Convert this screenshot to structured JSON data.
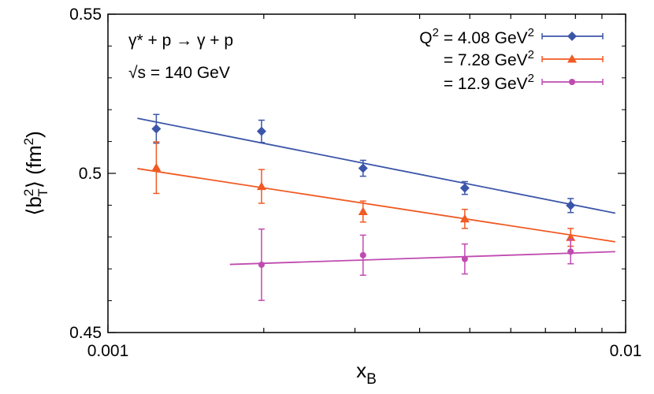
{
  "chart_data": {
    "type": "scatter",
    "title": "",
    "xlabel": "x",
    "xlabel_sub": "B",
    "ylabel_parts": {
      "open": "⟨b",
      "sup": "2",
      "sub": "T",
      "close": "⟩ (fm",
      "unit_sup": "2",
      "end": ")"
    },
    "xscale": "log",
    "xlim": [
      0.001,
      0.01
    ],
    "ylim": [
      0.45,
      0.55
    ],
    "xticks": [
      0.001,
      0.01
    ],
    "xtick_labels": [
      "0.001",
      "0.01"
    ],
    "yticks": [
      0.45,
      0.5,
      0.55
    ],
    "ytick_labels": [
      "0.45",
      "0.5",
      "0.55"
    ],
    "grid": false,
    "legend_position": "top-right",
    "annotations": [
      {
        "text": "γ* + p → γ + p"
      },
      {
        "text": "√s = 140 GeV"
      }
    ],
    "series": [
      {
        "name": "Q² = 4.08 GeV²",
        "legend_prefix": "Q",
        "legend_value": " = 4.08 GeV",
        "color": "#3b55a8",
        "marker": "diamond",
        "points": [
          {
            "x": 0.00124,
            "y": 0.514,
            "err": 0.0045
          },
          {
            "x": 0.00198,
            "y": 0.5132,
            "err": 0.0035
          },
          {
            "x": 0.00311,
            "y": 0.5016,
            "err": 0.0025
          },
          {
            "x": 0.00489,
            "y": 0.4954,
            "err": 0.002
          },
          {
            "x": 0.00783,
            "y": 0.4899,
            "err": 0.0022
          }
        ],
        "fit": [
          [
            0.00114,
            0.5173
          ],
          [
            0.00955,
            0.4875
          ]
        ]
      },
      {
        "name": "= 7.28 GeV²",
        "legend_prefix": "",
        "legend_value": "= 7.28 GeV",
        "color": "#f05a23",
        "marker": "triangle",
        "points": [
          {
            "x": 0.00124,
            "y": 0.5018,
            "err": 0.0081
          },
          {
            "x": 0.00198,
            "y": 0.4959,
            "err": 0.0053
          },
          {
            "x": 0.00311,
            "y": 0.488,
            "err": 0.0033
          },
          {
            "x": 0.00489,
            "y": 0.4857,
            "err": 0.003
          },
          {
            "x": 0.00783,
            "y": 0.4799,
            "err": 0.0028
          }
        ],
        "fit": [
          [
            0.00114,
            0.5015
          ],
          [
            0.00955,
            0.4785
          ]
        ]
      },
      {
        "name": "= 12.9 GeV²",
        "legend_prefix": "",
        "legend_value": "= 12.9 GeV",
        "color": "#c04bb0",
        "marker": "circle",
        "points": [
          {
            "x": 0.00198,
            "y": 0.4713,
            "err": 0.0112
          },
          {
            "x": 0.00311,
            "y": 0.4743,
            "err": 0.0063
          },
          {
            "x": 0.00489,
            "y": 0.4731,
            "err": 0.0047
          },
          {
            "x": 0.00783,
            "y": 0.4754,
            "err": 0.0038
          }
        ],
        "fit": [
          [
            0.00172,
            0.4714
          ],
          [
            0.00955,
            0.4754
          ]
        ]
      }
    ]
  }
}
